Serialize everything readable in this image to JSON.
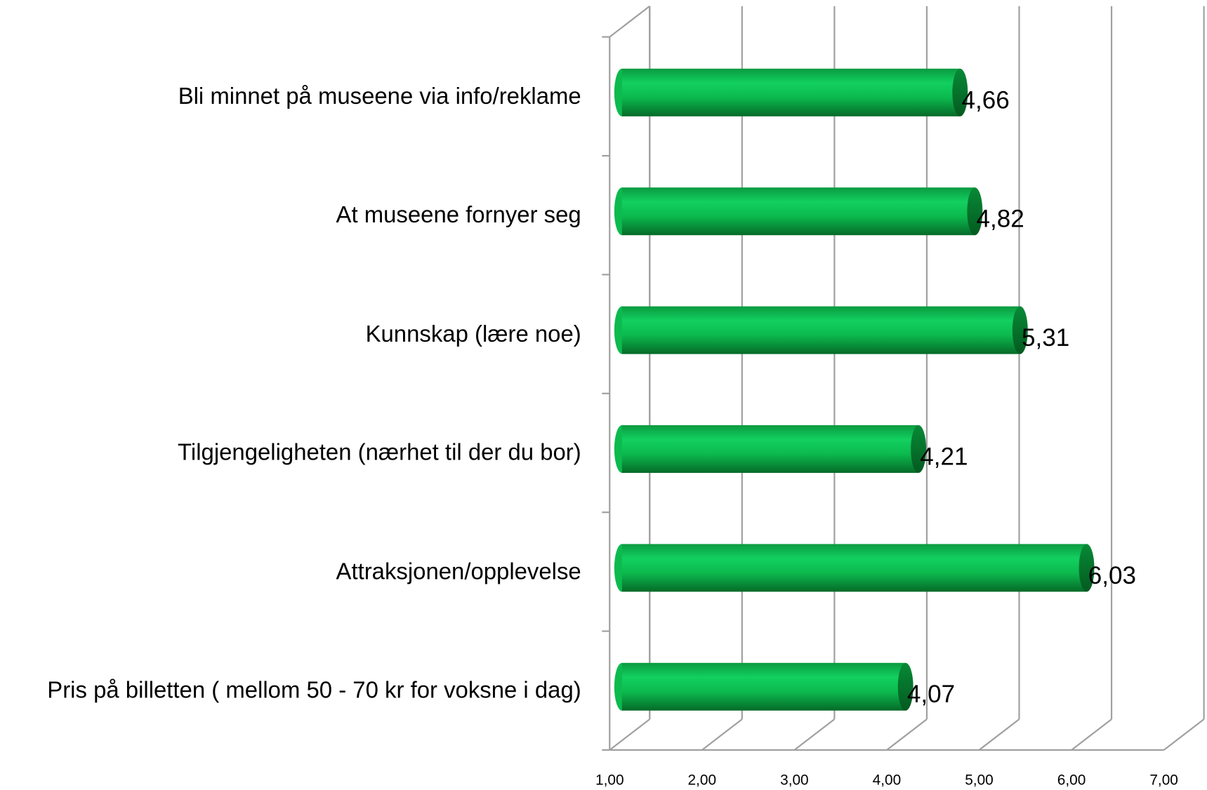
{
  "chart_data": {
    "type": "bar",
    "orientation": "horizontal",
    "categories": [
      "Bli minnet på museene via info/reklame",
      "At museene fornyer seg",
      "Kunnskap (lære noe)",
      "Tilgjengeligheten (nærhet til der du bor)",
      "Attraksjonen/opplevelse",
      "Pris på billetten ( mellom 50 - 70 kr for voksne i dag)"
    ],
    "values": [
      4.66,
      4.82,
      5.31,
      4.21,
      6.03,
      4.07
    ],
    "value_labels": [
      "4,66",
      "4,82",
      "5,31",
      "4,21",
      "6,03",
      "4,07"
    ],
    "color": "#0cba4e",
    "xlim": [
      1,
      7
    ],
    "xticks": [
      {
        "value": 1,
        "label": "1,00"
      },
      {
        "value": 2,
        "label": "2,00"
      },
      {
        "value": 3,
        "label": "3,00"
      },
      {
        "value": 4,
        "label": "4,00"
      },
      {
        "value": 5,
        "label": "5,00"
      },
      {
        "value": 6,
        "label": "6,00"
      },
      {
        "value": 7,
        "label": "7,00"
      }
    ],
    "grid": true
  }
}
